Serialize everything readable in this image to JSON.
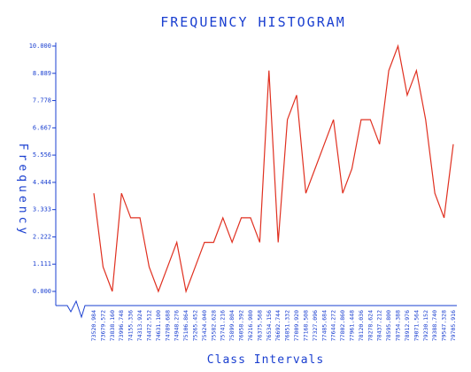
{
  "chart_data": {
    "type": "line",
    "title": "FREQUENCY HISTOGRAM",
    "x_label": "Class Intervals",
    "y_label": "Frequency",
    "categories": [
      "73520.984",
      "73679.572",
      "73838.160",
      "73996.748",
      "74155.336",
      "74313.924",
      "74472.512",
      "74631.100",
      "74789.688",
      "74948.276",
      "75106.864",
      "75265.452",
      "75424.040",
      "75582.628",
      "75741.216",
      "75899.804",
      "76058.392",
      "76216.980",
      "76375.568",
      "76534.156",
      "76692.744",
      "76851.332",
      "77009.920",
      "77168.508",
      "77327.096",
      "77485.684",
      "77644.272",
      "77802.860",
      "77961.448",
      "78120.036",
      "78278.624",
      "78437.212",
      "78595.800",
      "78754.388",
      "78912.976",
      "79071.564",
      "79230.152",
      "79388.740",
      "79547.328",
      "79705.916"
    ],
    "values": [
      4,
      1,
      0,
      4,
      3,
      3,
      1,
      0,
      1,
      2,
      0,
      1,
      2,
      2,
      3,
      2,
      3,
      3,
      2,
      9,
      2,
      7,
      8,
      4,
      5,
      6,
      7,
      4,
      5,
      7,
      7,
      6,
      9,
      10,
      8,
      9,
      7,
      4,
      3,
      6
    ],
    "color": "#e03020",
    "ylim": [
      0,
      10
    ],
    "yticks": [
      {
        "value": 0,
        "label": "0.000"
      },
      {
        "value": 1.111,
        "label": "1.111"
      },
      {
        "value": 2.222,
        "label": "2.222"
      },
      {
        "value": 3.333,
        "label": "3.333"
      },
      {
        "value": 4.444,
        "label": "4.444"
      },
      {
        "value": 5.556,
        "label": "5.556"
      },
      {
        "value": 6.667,
        "label": "6.667"
      },
      {
        "value": 7.778,
        "label": "7.778"
      },
      {
        "value": 8.889,
        "label": "8.889"
      },
      {
        "value": 10,
        "label": "10.000"
      }
    ]
  }
}
